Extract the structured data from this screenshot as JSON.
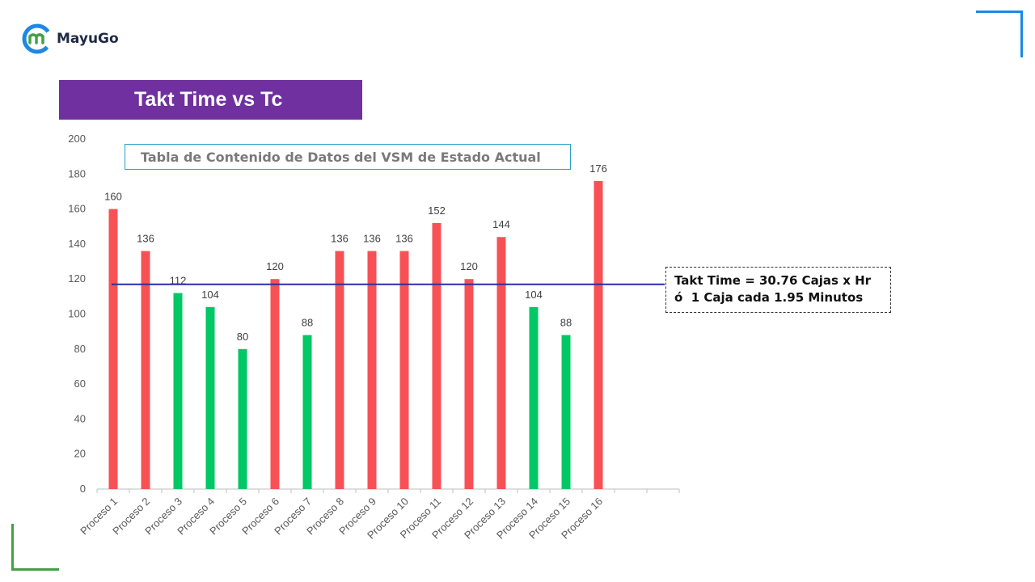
{
  "logo": {
    "text": "MayuGo"
  },
  "banner": {
    "title": "Takt Time vs Tc"
  },
  "subtitle_box": {
    "text": "Tabla de Contenido de Datos del VSM de Estado Actual"
  },
  "annotation": {
    "line1": "Takt Time = 30.76 Cajas x Hr",
    "line2": "ó  1 Caja cada 1.95 Minutos"
  },
  "colors": {
    "above": "#f85155",
    "below": "#00c865",
    "takt_line": "#2b2bb0",
    "banner": "#7030a0"
  },
  "chart_data": {
    "type": "bar",
    "categories": [
      "Proceso 1",
      "Proceso 2",
      "Proceso 3",
      "Proceso 4",
      "Proceso 5",
      "Proceso 6",
      "Proceso 7",
      "Proceso 8",
      "Proceso 9",
      "Proceso 10",
      "Proceso 11",
      "Proceso 12",
      "Proceso 13",
      "Proceso 14",
      "Proceso 15",
      "Proceso 16"
    ],
    "values": [
      160,
      136,
      112,
      104,
      80,
      120,
      88,
      136,
      136,
      136,
      152,
      120,
      144,
      104,
      88,
      176
    ],
    "bar_color_class": [
      "above",
      "above",
      "below",
      "below",
      "below",
      "above",
      "below",
      "above",
      "above",
      "above",
      "above",
      "above",
      "above",
      "below",
      "below",
      "above"
    ],
    "ylim": [
      0,
      200
    ],
    "yticks": [
      0,
      20,
      40,
      60,
      80,
      100,
      120,
      140,
      160,
      180,
      200
    ],
    "reference_line": {
      "value": 117
    },
    "grid": false,
    "legend": "none"
  }
}
